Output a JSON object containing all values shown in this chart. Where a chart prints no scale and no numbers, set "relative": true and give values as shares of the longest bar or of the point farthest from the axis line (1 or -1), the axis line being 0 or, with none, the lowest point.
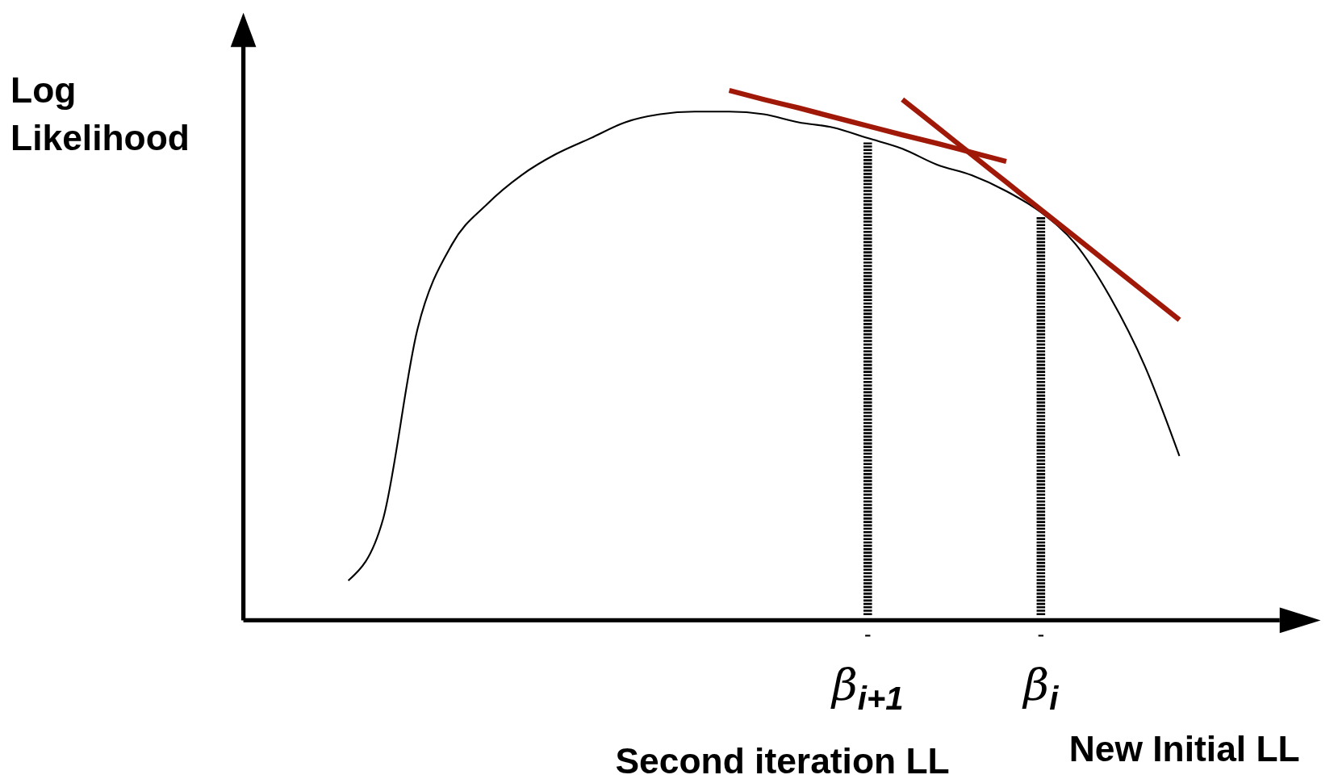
{
  "chart_data": {
    "type": "line",
    "relative": true,
    "ylabel": "Log Likelihood",
    "categories": [
      null,
      null,
      null,
      null,
      null,
      null,
      null,
      null,
      null,
      null,
      null,
      null,
      null,
      null,
      null,
      "β$_{i+1}$",
      null,
      null,
      null,
      null,
      "β$_{i}$",
      null,
      null,
      null,
      null
    ],
    "series": [
      {
        "color": "#000000",
        "values": [
          0.075,
          0.19,
          0.55,
          0.71,
          0.785,
          0.84,
          0.88,
          0.91,
          0.94,
          0.955,
          0.96,
          0.96,
          0.955,
          0.94,
          0.93,
          0.91,
          0.89,
          0.86,
          0.84,
          0.81,
          0.77,
          0.71,
          0.61,
          0.48,
          0.31
        ]
      },
      {
        "color": "#a01808",
        "values": [
          null,
          null,
          null,
          null,
          null,
          null,
          null,
          null,
          null,
          null,
          null,
          1,
          0.983,
          0.967,
          0.95,
          0.933,
          0.916,
          0.9,
          0.883,
          0.866,
          null,
          null,
          null,
          null,
          null
        ]
      },
      {
        "color": "#a01808",
        "values": [
          null,
          null,
          null,
          null,
          null,
          null,
          null,
          null,
          null,
          null,
          null,
          null,
          null,
          null,
          null,
          null,
          0.983,
          0.931,
          0.879,
          0.827,
          0.775,
          0.723,
          0.671,
          0.619,
          0.567
        ]
      }
    ],
    "ref_lines": [
      {
        "axis": "x",
        "value": "β$_{i+1}$",
        "line_style": "dashed",
        "color": "#000000"
      },
      {
        "axis": "x",
        "value": "β$_{i}$",
        "line_style": "dashed",
        "color": "#000000"
      }
    ],
    "annotations": [
      "Second iteration LL",
      "New Initial LL"
    ]
  }
}
